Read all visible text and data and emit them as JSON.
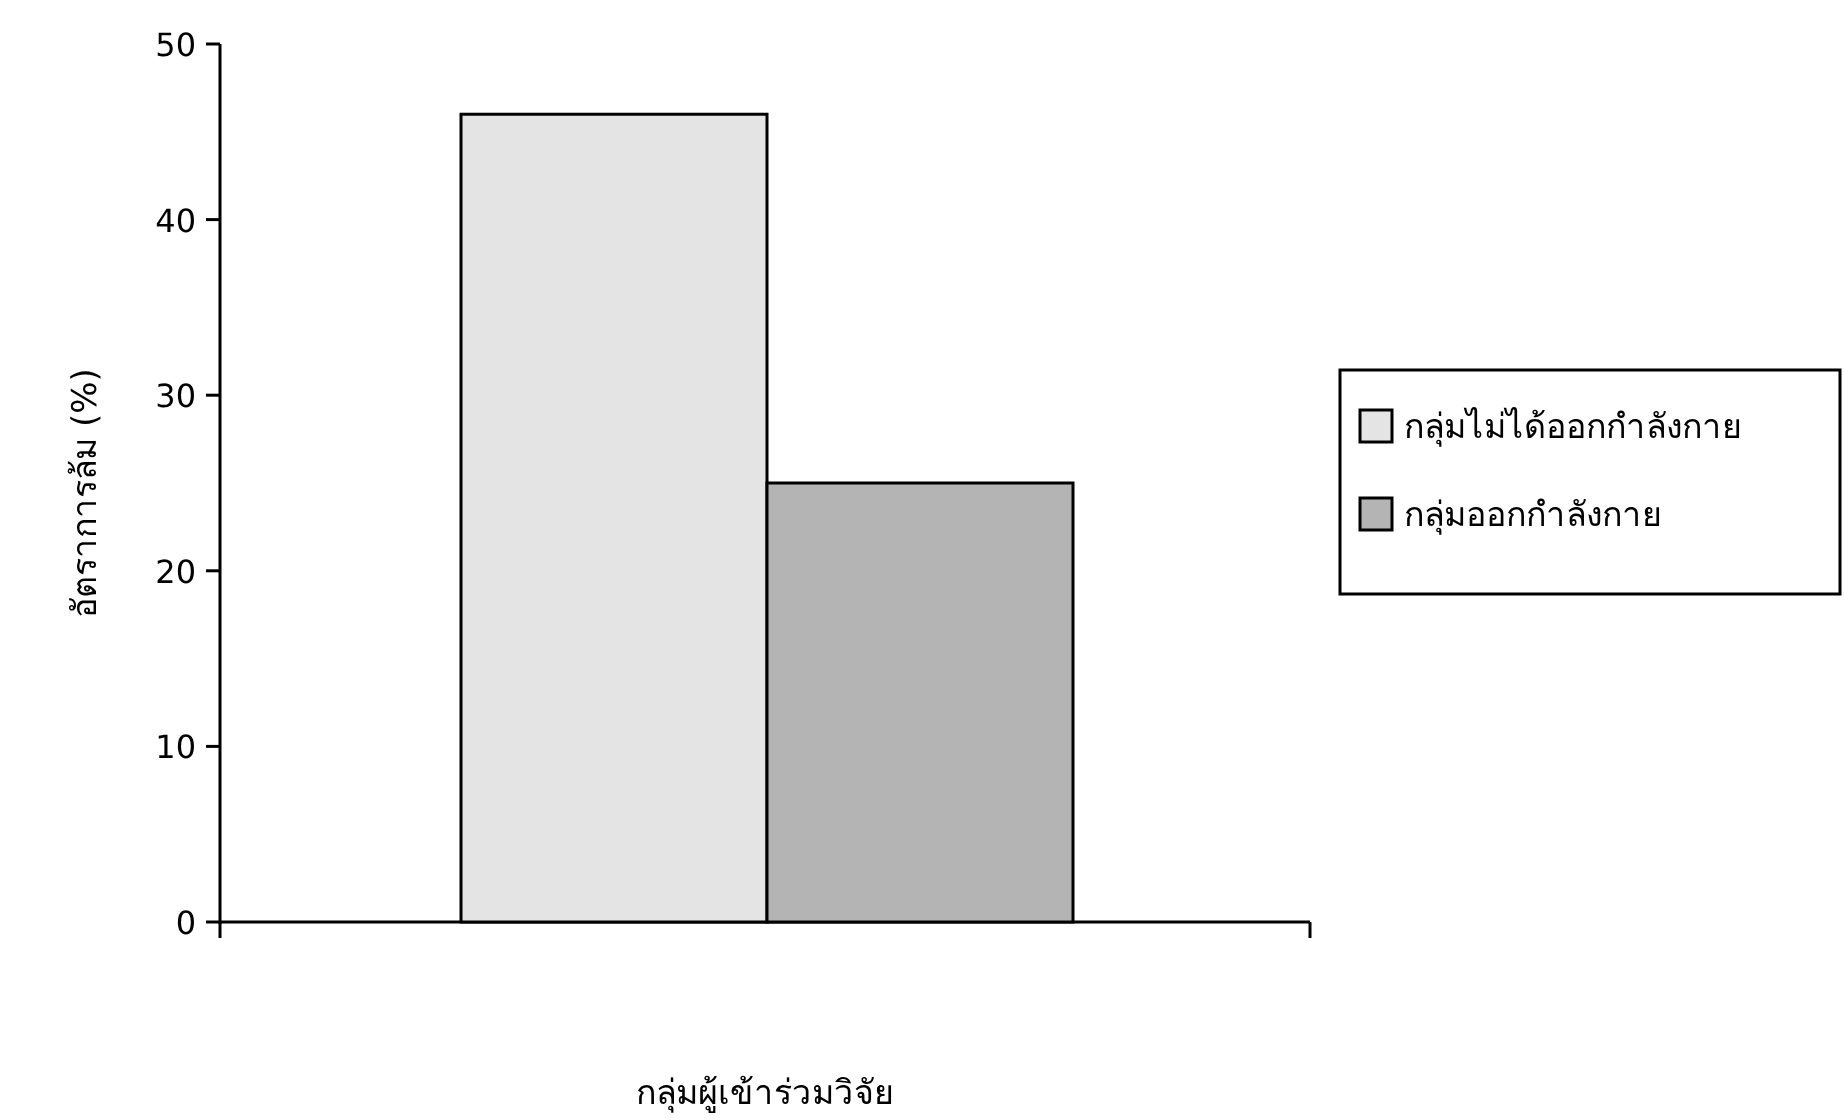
{
  "chart_data": {
    "type": "bar",
    "categories": [
      null
    ],
    "xlabel": "กลุ่มผู้เข้าร่วมวิจัย",
    "ylabel": "อัตราการล้ม (%)",
    "ylim": [
      0,
      50
    ],
    "yticks": [
      0,
      10,
      20,
      30,
      40,
      50
    ],
    "legend": "right",
    "series": [
      {
        "name": "กลุ่มไม่ได้ออกกำลังกาย",
        "color": "#e4e4e4",
        "values": [
          46
        ]
      },
      {
        "name": "กลุ่มออกกำลังกาย",
        "color": "#b4b4b4",
        "values": [
          25
        ]
      }
    ]
  }
}
